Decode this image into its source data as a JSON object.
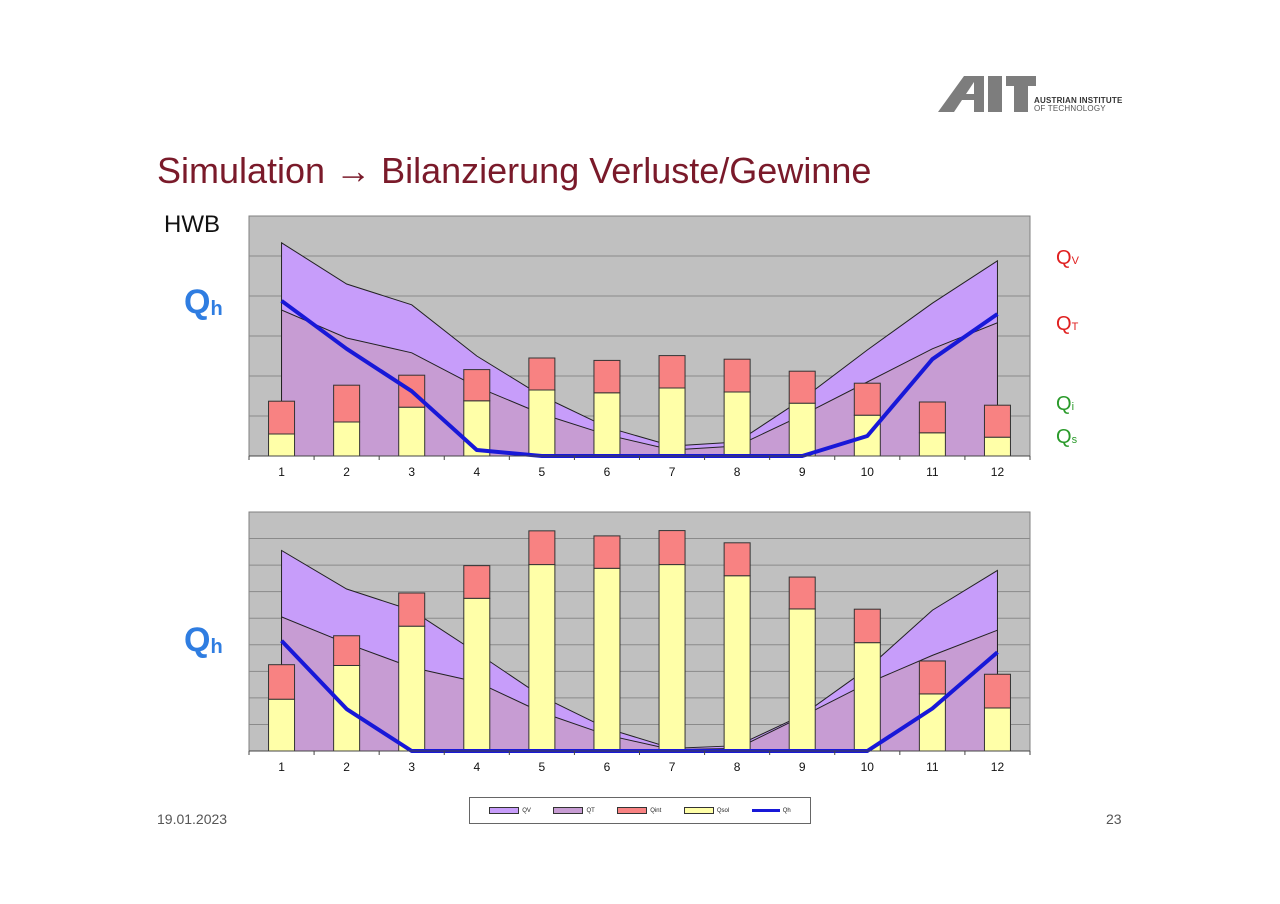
{
  "slide": {
    "title": "Simulation → Bilanzierung Verluste/Gewinne",
    "date": "19.01.2023",
    "page": "23",
    "hwb_label": "HWB",
    "qh_label_main": "Q",
    "qh_label_sub": "h",
    "logo": {
      "mark": "AIT",
      "line1": "AUSTRIAN INSTITUTE",
      "line2": "OF TECHNOLOGY"
    },
    "right_labels": [
      {
        "main": "Q",
        "sub": "V",
        "color": "#e02020"
      },
      {
        "main": "Q",
        "sub": "T",
        "color": "#e02020"
      },
      {
        "main": "Q",
        "sub": "i",
        "color": "#2a9a2a"
      },
      {
        "main": "Q",
        "sub": "s",
        "color": "#2a9a2a"
      }
    ]
  },
  "legend": [
    "QV",
    "QT",
    "Qint",
    "Qsol",
    "Qh"
  ],
  "colors": {
    "QV": "#c79dfa",
    "QT": "#c79cd3",
    "Qint": "#f88282",
    "Qsol": "#ffffa8",
    "Qh": "#1818d8",
    "plot_bg": "#c0c0c0"
  },
  "chart_data": [
    {
      "type": "bar",
      "categories": [
        "1",
        "2",
        "3",
        "4",
        "5",
        "6",
        "7",
        "8",
        "9",
        "10",
        "11",
        "12"
      ],
      "ylim": [
        0,
        6
      ],
      "grid": true,
      "series": [
        {
          "name": "QV",
          "values": [
            5.33,
            4.3,
            3.78,
            2.5,
            1.5,
            0.72,
            0.25,
            0.35,
            1.42,
            2.65,
            3.82,
            4.88
          ]
        },
        {
          "name": "QT",
          "values": [
            3.65,
            2.95,
            2.58,
            1.73,
            1.05,
            0.53,
            0.15,
            0.25,
            1.02,
            1.85,
            2.68,
            3.33
          ]
        },
        {
          "name": "Qint",
          "values": [
            0.82,
            0.92,
            0.8,
            0.78,
            0.8,
            0.81,
            0.81,
            0.82,
            0.8,
            0.8,
            0.77,
            0.8
          ]
        },
        {
          "name": "Qsol",
          "values": [
            0.55,
            0.85,
            1.22,
            1.38,
            1.65,
            1.58,
            1.7,
            1.6,
            1.32,
            1.02,
            0.58,
            0.47
          ]
        },
        {
          "name": "Qh",
          "values": [
            3.88,
            2.68,
            1.62,
            0.15,
            0.0,
            0.0,
            0.0,
            0.0,
            0.0,
            0.5,
            2.42,
            3.55
          ]
        }
      ]
    },
    {
      "type": "bar",
      "categories": [
        "1",
        "2",
        "3",
        "4",
        "5",
        "6",
        "7",
        "8",
        "9",
        "10",
        "11",
        "12"
      ],
      "ylim": [
        0,
        9
      ],
      "grid": true,
      "series": [
        {
          "name": "QV",
          "values": [
            7.55,
            6.1,
            5.3,
            3.7,
            2.05,
            0.85,
            0.1,
            0.2,
            1.35,
            3.1,
            5.3,
            6.8
          ]
        },
        {
          "name": "QT",
          "values": [
            5.05,
            4.05,
            3.15,
            2.6,
            1.45,
            0.6,
            0.05,
            0.1,
            1.3,
            2.55,
            3.6,
            4.55
          ]
        },
        {
          "name": "Qint",
          "values": [
            1.3,
            1.12,
            1.25,
            1.23,
            1.27,
            1.22,
            1.28,
            1.24,
            1.2,
            1.26,
            1.24,
            1.27
          ]
        },
        {
          "name": "Qsol",
          "values": [
            1.95,
            3.22,
            4.7,
            5.75,
            7.02,
            6.88,
            7.02,
            6.6,
            5.35,
            4.08,
            2.15,
            1.62
          ]
        },
        {
          "name": "Qh",
          "values": [
            4.15,
            1.58,
            0.0,
            0.0,
            0.0,
            0.0,
            0.0,
            0.0,
            0.0,
            0.0,
            1.6,
            3.72
          ]
        }
      ]
    }
  ]
}
